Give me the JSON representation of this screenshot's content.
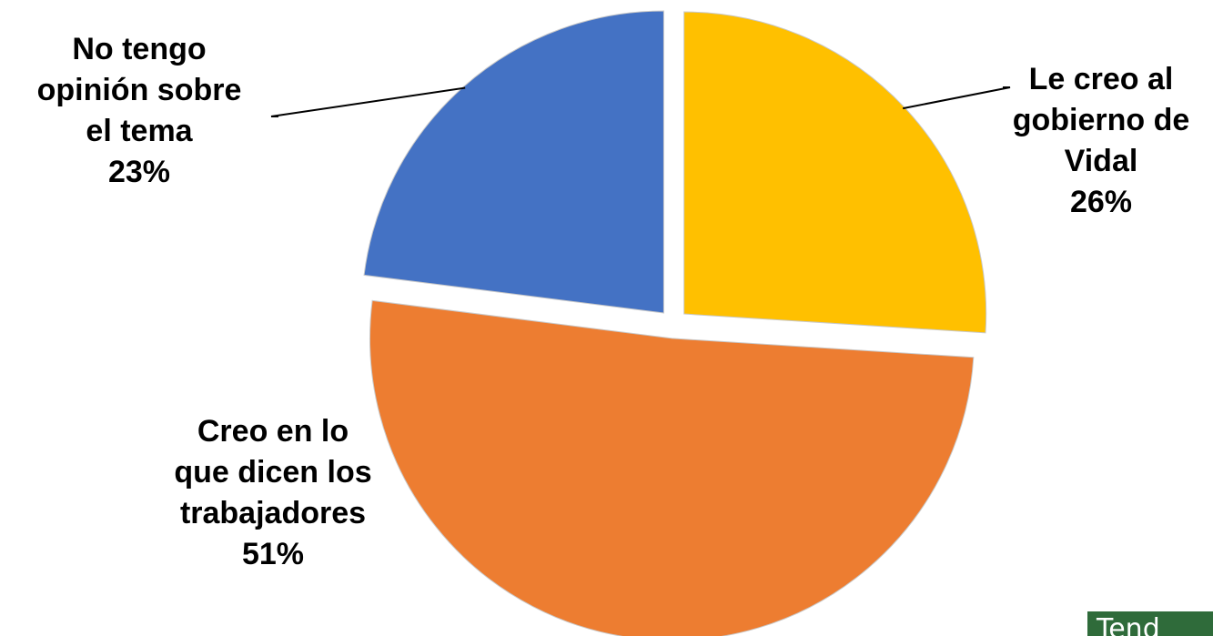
{
  "chart_data": {
    "type": "pie",
    "title": "",
    "slices": [
      {
        "label_lines": [
          "Le creo al",
          "gobierno de",
          "Vidal"
        ],
        "percent_label": "26%",
        "value": 26,
        "color": "#FFC000"
      },
      {
        "label_lines": [
          "Creo en lo",
          "que dicen los",
          "trabajadores"
        ],
        "percent_label": "51%",
        "value": 51,
        "color": "#ED7D31"
      },
      {
        "label_lines": [
          "No tengo",
          "opinión sobre",
          "el tema"
        ],
        "percent_label": "23%",
        "value": 23,
        "color": "#4472C4"
      }
    ],
    "start_angle_deg": 0,
    "direction": "clockwise",
    "exploded": true,
    "legend": "none",
    "data_labels": "outside-with-leader-lines"
  },
  "watermark": {
    "text": "Tend"
  }
}
